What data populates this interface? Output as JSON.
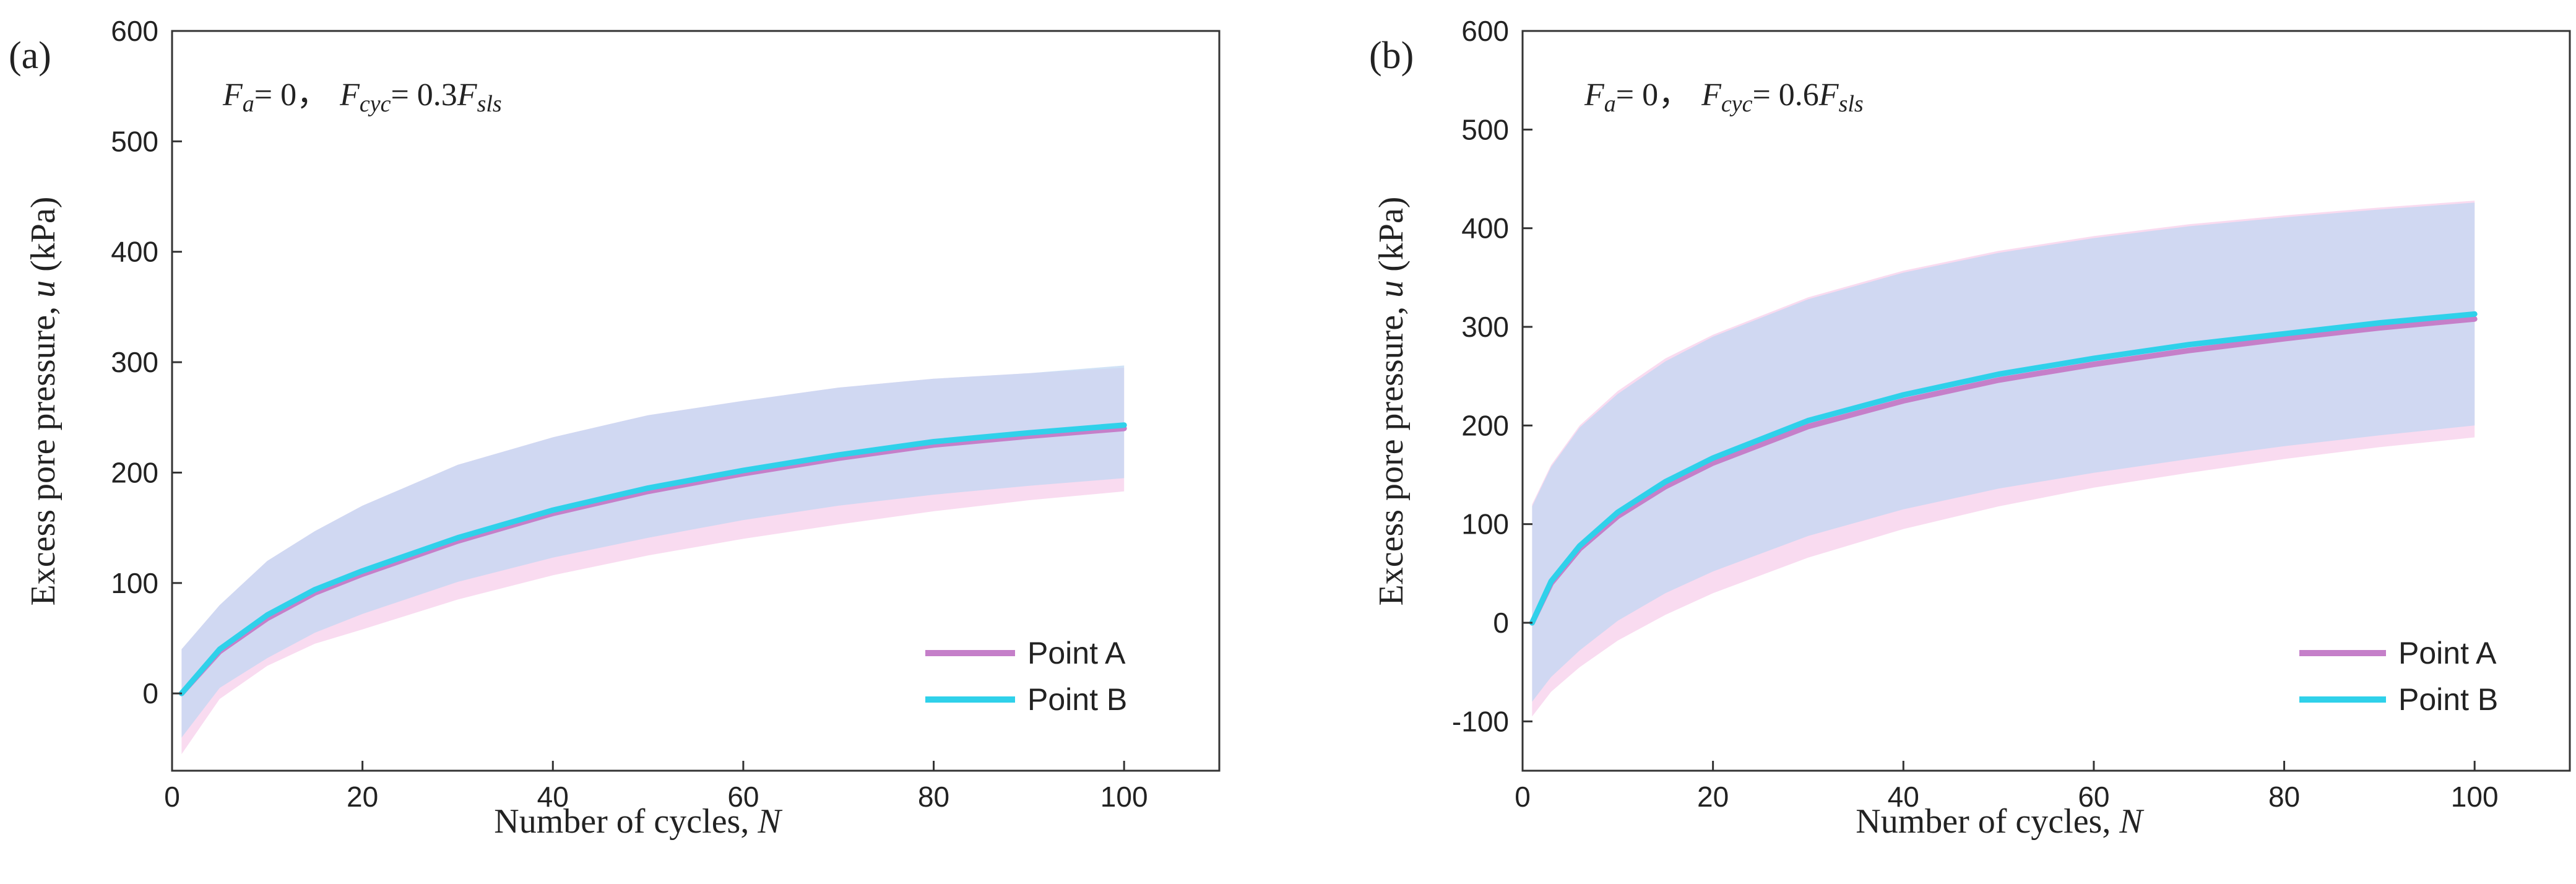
{
  "chart_data": [
    {
      "type": "line",
      "panel": "(a)",
      "annotation": {
        "F": "F",
        "a": "a",
        "eq1": "= 0，",
        "cyc": "cyc",
        "eq2": "= 0.3",
        "sls": "sls"
      },
      "xlabel": {
        "text": "Number of cycles, ",
        "var": "N"
      },
      "ylabel": {
        "text": "Excess pore pressure, ",
        "var": "u",
        "unit": " (kPa)"
      },
      "xlim": [
        0,
        110
      ],
      "ylim": [
        -70,
        600
      ],
      "xticks": [
        0,
        20,
        40,
        60,
        80,
        100
      ],
      "yticks": [
        0,
        100,
        200,
        300,
        400,
        500,
        600
      ],
      "grid": false,
      "legend_position": "bottom-right",
      "series": [
        {
          "name": "Point A",
          "color": "#c57fc9",
          "x": [
            1,
            5,
            10,
            15,
            20,
            30,
            40,
            50,
            60,
            70,
            80,
            90,
            100
          ],
          "mean": [
            0,
            38,
            68,
            91,
            108,
            138,
            163,
            183,
            199,
            213,
            225,
            233,
            240
          ],
          "upper": [
            40,
            80,
            120,
            147,
            170,
            207,
            232,
            252,
            265,
            277,
            285,
            290,
            295
          ],
          "lower": [
            -55,
            -5,
            25,
            45,
            58,
            85,
            107,
            125,
            140,
            153,
            165,
            175,
            183
          ],
          "band_color": "#f6cdea"
        },
        {
          "name": "Point B",
          "color": "#2fd1ea",
          "x": [
            1,
            5,
            10,
            15,
            20,
            30,
            40,
            50,
            60,
            70,
            80,
            90,
            100
          ],
          "mean": [
            0,
            40,
            71,
            94,
            111,
            141,
            166,
            186,
            202,
            216,
            228,
            236,
            243
          ],
          "upper": [
            40,
            80,
            120,
            147,
            170,
            207,
            232,
            252,
            265,
            277,
            285,
            290,
            297
          ],
          "lower": [
            -40,
            5,
            32,
            55,
            72,
            101,
            123,
            141,
            157,
            170,
            180,
            188,
            195
          ],
          "band_color": "#bfd7f3"
        }
      ]
    },
    {
      "type": "line",
      "panel": "(b)",
      "annotation": {
        "F": "F",
        "a": "a",
        "eq1": "= 0，",
        "cyc": "cyc",
        "eq2": "= 0.6",
        "sls": "sls"
      },
      "xlabel": {
        "text": "Number of cycles, ",
        "var": "N"
      },
      "ylabel": {
        "text": "Excess pore pressure, ",
        "var": "u",
        "unit": " (kPa)"
      },
      "xlim": [
        0,
        110
      ],
      "ylim": [
        -150,
        600
      ],
      "xticks": [
        0,
        20,
        40,
        60,
        80,
        100
      ],
      "yticks": [
        -100,
        0,
        100,
        200,
        300,
        400,
        500,
        600
      ],
      "grid": false,
      "legend_position": "bottom-right",
      "series": [
        {
          "name": "Point A",
          "color": "#c57fc9",
          "x": [
            1,
            3,
            6,
            10,
            15,
            20,
            30,
            40,
            50,
            60,
            70,
            80,
            90,
            100
          ],
          "mean": [
            0,
            40,
            75,
            108,
            138,
            162,
            199,
            225,
            246,
            262,
            276,
            288,
            299,
            308
          ],
          "upper": [
            120,
            160,
            200,
            235,
            268,
            292,
            330,
            357,
            377,
            392,
            404,
            413,
            421,
            428
          ],
          "lower": [
            -95,
            -70,
            -45,
            -18,
            8,
            30,
            66,
            95,
            118,
            137,
            152,
            166,
            178,
            188
          ],
          "band_color": "#f6cdea"
        },
        {
          "name": "Point B",
          "color": "#2fd1ea",
          "x": [
            1,
            3,
            6,
            10,
            15,
            20,
            30,
            40,
            50,
            60,
            70,
            80,
            90,
            100
          ],
          "mean": [
            0,
            42,
            78,
            112,
            143,
            167,
            205,
            231,
            252,
            268,
            282,
            293,
            304,
            313
          ],
          "upper": [
            118,
            158,
            198,
            232,
            265,
            290,
            328,
            355,
            375,
            390,
            402,
            411,
            419,
            426
          ],
          "lower": [
            -80,
            -55,
            -28,
            2,
            30,
            52,
            88,
            115,
            136,
            152,
            166,
            179,
            190,
            200
          ],
          "band_color": "#bfd7f3"
        }
      ]
    }
  ]
}
